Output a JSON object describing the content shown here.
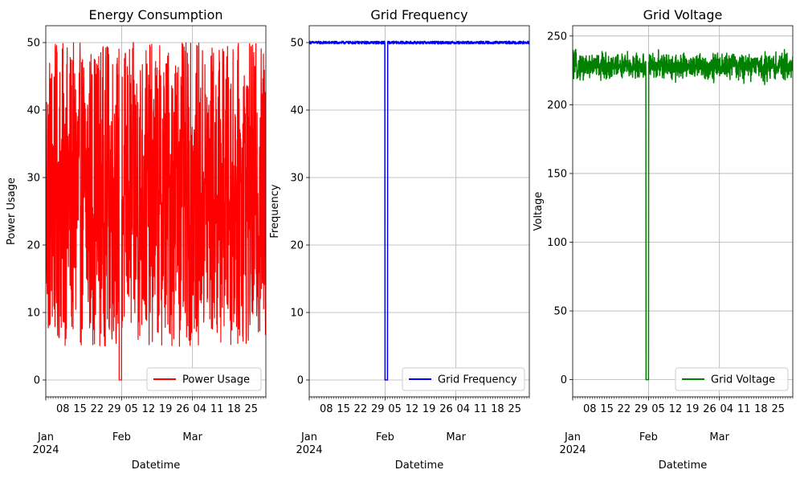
{
  "chart_data": [
    {
      "type": "line",
      "title": "Energy Consumption",
      "xlabel": "Datetime",
      "ylabel": "Power Usage",
      "x_range": [
        "2024-01-01",
        "2024-03-31"
      ],
      "ylim": [
        -2.5,
        52.5
      ],
      "yticks": [
        0,
        10,
        20,
        30,
        40,
        50
      ],
      "grid": true,
      "legend_position": "lower-right",
      "series": [
        {
          "name": "Power Usage",
          "color": "#ff0000",
          "baseline_range": [
            5,
            50
          ],
          "dips": [
            {
              "start": "2024-01-31",
              "end": "2024-02-01",
              "value": 0
            }
          ]
        }
      ]
    },
    {
      "type": "line",
      "title": "Grid Frequency",
      "xlabel": "Datetime",
      "ylabel": "Frequency",
      "x_range": [
        "2024-01-01",
        "2024-03-31"
      ],
      "ylim": [
        -2.5,
        52.5
      ],
      "yticks": [
        0,
        10,
        20,
        30,
        40,
        50
      ],
      "grid": true,
      "legend_position": "lower-right",
      "series": [
        {
          "name": "Grid Frequency",
          "color": "#0000ff",
          "baseline_range": [
            49.8,
            50.2
          ],
          "dips": [
            {
              "start": "2024-02-01",
              "end": "2024-02-02",
              "value": 0
            }
          ]
        }
      ]
    },
    {
      "type": "line",
      "title": "Grid Voltage",
      "xlabel": "Datetime",
      "ylabel": "Voltage",
      "x_range": [
        "2024-01-01",
        "2024-03-31"
      ],
      "ylim": [
        -12.5,
        257.5
      ],
      "yticks": [
        0,
        50,
        100,
        150,
        200,
        250
      ],
      "grid": true,
      "legend_position": "lower-right",
      "series": [
        {
          "name": "Grid Voltage",
          "color": "#008000",
          "baseline_range": [
            215,
            245
          ],
          "dips": [
            {
              "start": "2024-01-31",
              "end": "2024-02-01",
              "value": 0
            }
          ]
        }
      ]
    }
  ],
  "x_day_ticks": [
    "08",
    "15",
    "22",
    "29",
    "05",
    "12",
    "19",
    "26",
    "04",
    "11",
    "18",
    "25"
  ],
  "x_month_ticks": [
    {
      "label": "Jan",
      "year": "2024"
    },
    {
      "label": "Feb"
    },
    {
      "label": "Mar"
    }
  ]
}
